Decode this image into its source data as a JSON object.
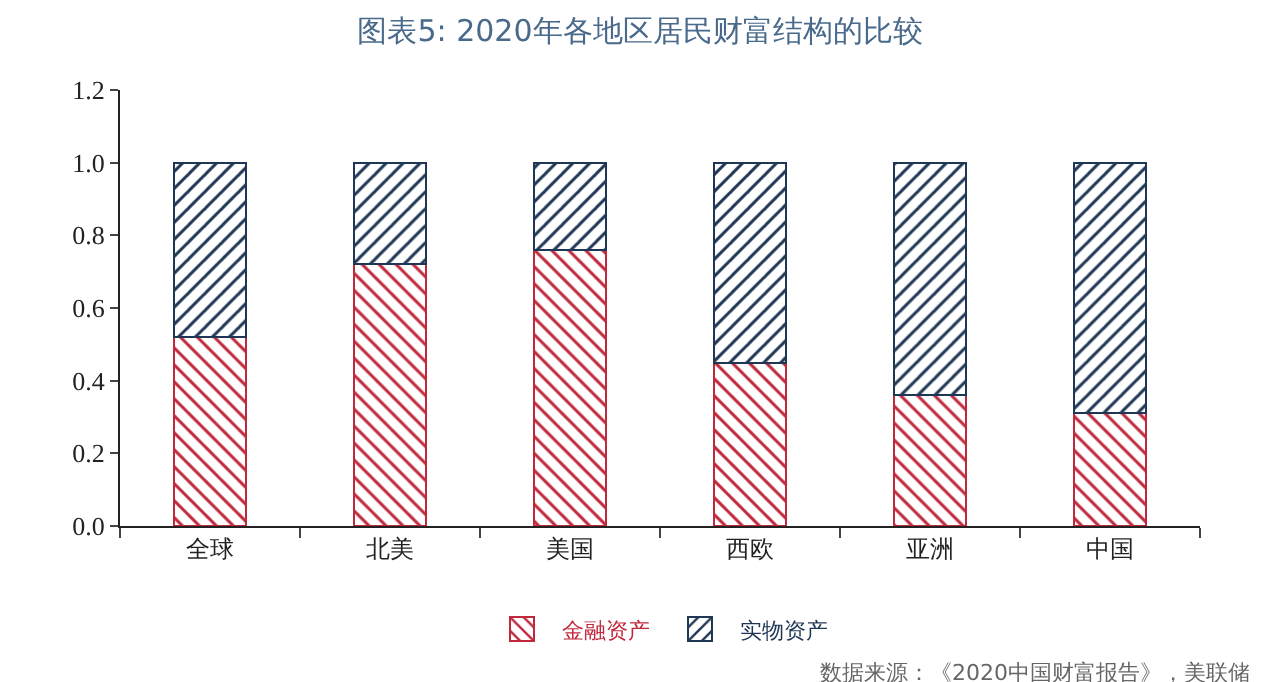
{
  "chart_data": {
    "type": "bar",
    "title": "图表5: 2020年各地区居民财富结构的比较",
    "categories": [
      "全球",
      "北美",
      "美国",
      "西欧",
      "亚洲",
      "中国"
    ],
    "series": [
      {
        "name": "金融资产",
        "color": "#c0283c",
        "values": [
          0.52,
          0.72,
          0.76,
          0.45,
          0.36,
          0.31
        ]
      },
      {
        "name": "实物资产",
        "color": "#1f3654",
        "values": [
          0.48,
          0.28,
          0.24,
          0.55,
          0.64,
          0.69
        ]
      }
    ],
    "stacked": true,
    "ylim": [
      0,
      1.2
    ],
    "yticks": [
      {
        "value": 0,
        "label": "0.0"
      },
      0.2,
      0.4,
      0.6,
      0.8,
      {
        "value": 1,
        "label": "1.0"
      },
      1.2
    ],
    "grid": false,
    "legend": "bottom",
    "annotations": [
      "数据来源：《2020中国财富报告》，美联储"
    ]
  }
}
